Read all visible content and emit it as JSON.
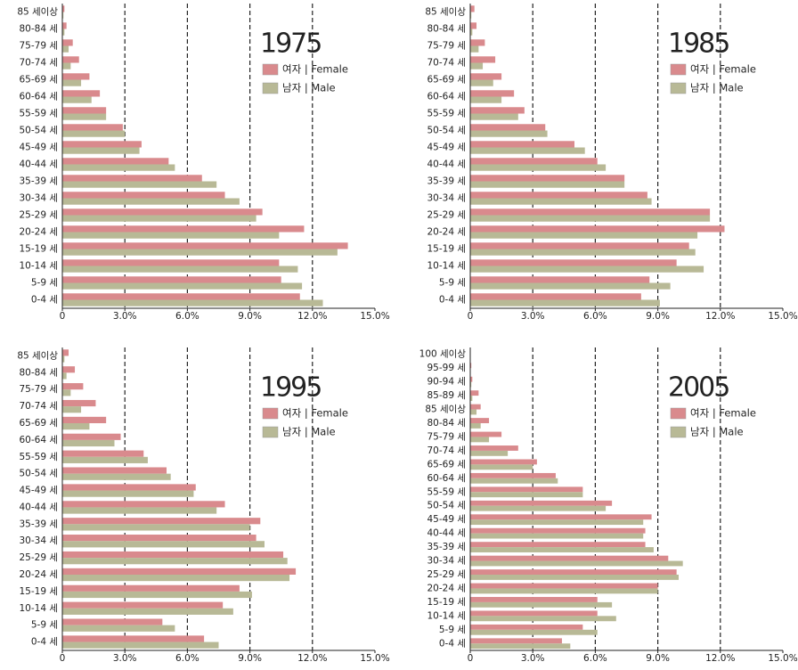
{
  "chart_data": [
    {
      "type": "bar",
      "orientation": "horizontal",
      "title": "1975",
      "categories": [
        "0-4 세",
        "5-9 세",
        "10-14 세",
        "15-19 세",
        "20-24 세",
        "25-29 세",
        "30-34 세",
        "35-39 세",
        "40-44 세",
        "45-49 세",
        "50-54 세",
        "55-59 세",
        "60-64 세",
        "65-69 세",
        "70-74 세",
        "75-79 세",
        "80-84 세",
        "85 세이상"
      ],
      "series": [
        {
          "name": "여자 | Female",
          "color": "#d98a8d",
          "values": [
            11.4,
            10.5,
            10.4,
            13.7,
            11.6,
            9.6,
            7.8,
            6.7,
            5.1,
            3.8,
            2.9,
            2.1,
            1.8,
            1.3,
            0.8,
            0.5,
            0.2,
            0.1
          ]
        },
        {
          "name": "남자 | Male",
          "color": "#b8b996",
          "values": [
            12.5,
            11.5,
            11.3,
            13.2,
            10.4,
            9.3,
            8.5,
            7.4,
            5.4,
            3.7,
            3.0,
            2.1,
            1.4,
            0.9,
            0.4,
            0.3,
            0.1,
            0.05
          ]
        }
      ],
      "xlim": [
        0,
        15
      ],
      "xticks": [
        0,
        {
          "value": 3,
          "label": "3.0%"
        },
        {
          "value": 6,
          "label": "6.0%"
        },
        {
          "value": 9,
          "label": "9.0%"
        },
        {
          "value": 12,
          "label": "12.0%"
        },
        {
          "value": 15,
          "label": "15.0%"
        }
      ],
      "grid": true
    },
    {
      "type": "bar",
      "orientation": "horizontal",
      "title": "1985",
      "categories": [
        "0-4 세",
        "5-9 세",
        "10-14 세",
        "15-19 세",
        "20-24 세",
        "25-29 세",
        "30-34 세",
        "35-39 세",
        "40-44 세",
        "45-49 세",
        "50-54 세",
        "55-59 세",
        "60-64 세",
        "65-69 세",
        "70-74 세",
        "75-79 세",
        "80-84 세",
        "85 세이상"
      ],
      "series": [
        {
          "name": "여자 | Female",
          "color": "#d98a8d",
          "values": [
            8.2,
            8.6,
            9.9,
            10.5,
            12.2,
            11.5,
            8.5,
            7.4,
            6.1,
            5.0,
            3.6,
            2.6,
            2.1,
            1.5,
            1.2,
            0.7,
            0.3,
            0.2
          ]
        },
        {
          "name": "남자 | Male",
          "color": "#b8b996",
          "values": [
            9.1,
            9.6,
            11.2,
            10.8,
            10.9,
            11.5,
            8.7,
            7.4,
            6.5,
            5.5,
            3.7,
            2.3,
            1.5,
            1.1,
            0.6,
            0.4,
            0.1,
            0.05
          ]
        }
      ],
      "xlim": [
        0,
        15
      ],
      "xticks": [
        0,
        {
          "value": 3,
          "label": "3.0%"
        },
        {
          "value": 6,
          "label": "6.0%"
        },
        {
          "value": 9,
          "label": "9.0%"
        },
        {
          "value": 12,
          "label": "12.0%"
        },
        {
          "value": 15,
          "label": "15.0%"
        }
      ],
      "grid": true
    },
    {
      "type": "bar",
      "orientation": "horizontal",
      "title": "1995",
      "categories": [
        "0-4 세",
        "5-9 세",
        "10-14 세",
        "15-19 세",
        "20-24 세",
        "25-29 세",
        "30-34 세",
        "35-39 세",
        "40-44 세",
        "45-49 세",
        "50-54 세",
        "55-59 세",
        "60-64 세",
        "65-69 세",
        "70-74 세",
        "75-79 세",
        "80-84 세",
        "85 세이상"
      ],
      "series": [
        {
          "name": "여자 | Female",
          "color": "#d98a8d",
          "values": [
            6.8,
            4.8,
            7.7,
            8.5,
            11.2,
            10.6,
            9.3,
            9.5,
            7.8,
            6.4,
            5.0,
            3.9,
            2.8,
            2.1,
            1.6,
            1.0,
            0.6,
            0.3
          ]
        },
        {
          "name": "남자 | Male",
          "color": "#b8b996",
          "values": [
            7.5,
            5.4,
            8.2,
            9.1,
            10.9,
            10.8,
            9.7,
            9.0,
            7.4,
            6.3,
            5.2,
            4.1,
            2.5,
            1.3,
            0.9,
            0.4,
            0.2,
            0.1
          ]
        }
      ],
      "xlim": [
        0,
        15
      ],
      "xticks": [
        0,
        {
          "value": 3,
          "label": "3.0%"
        },
        {
          "value": 6,
          "label": "6.0%"
        },
        {
          "value": 9,
          "label": "9.0%"
        },
        {
          "value": 12,
          "label": "12.0%"
        },
        {
          "value": 15,
          "label": "15.0%"
        }
      ],
      "grid": true
    },
    {
      "type": "bar",
      "orientation": "horizontal",
      "title": "2005",
      "categories": [
        "0-4 세",
        "5-9 세",
        "10-14 세",
        "15-19 세",
        "20-24 세",
        "25-29 세",
        "30-34 세",
        "35-39 세",
        "40-44 세",
        "45-49 세",
        "50-54 세",
        "55-59 세",
        "60-64 세",
        "65-69 세",
        "70-74 세",
        "75-79 세",
        "80-84 세",
        "85 세이상",
        "85-89 세",
        "90-94 세",
        "95-99 세",
        "100 세이상"
      ],
      "series": [
        {
          "name": "여자 | Female",
          "color": "#d98a8d",
          "values": [
            4.4,
            5.4,
            6.1,
            6.1,
            9.0,
            9.9,
            9.5,
            8.4,
            8.4,
            8.7,
            6.8,
            5.4,
            4.1,
            3.2,
            2.3,
            1.5,
            0.9,
            0.5,
            0.4,
            0.1,
            0.05,
            0.02
          ]
        },
        {
          "name": "남자 | Male",
          "color": "#b8b996",
          "values": [
            4.8,
            6.1,
            7.0,
            6.8,
            9.0,
            10.0,
            10.2,
            8.8,
            8.3,
            8.3,
            6.5,
            5.4,
            4.2,
            3.0,
            1.8,
            0.9,
            0.5,
            0.3,
            0.1,
            0.05,
            0.02,
            0.01
          ]
        }
      ],
      "xlim": [
        0,
        15
      ],
      "xticks": [
        0,
        {
          "value": 3,
          "label": "3.0%"
        },
        {
          "value": 6,
          "label": "6.0%"
        },
        {
          "value": 9,
          "label": "9.0%"
        },
        {
          "value": 12,
          "label": "12.0%"
        },
        {
          "value": 15,
          "label": "15.0%"
        }
      ],
      "grid": true
    }
  ]
}
